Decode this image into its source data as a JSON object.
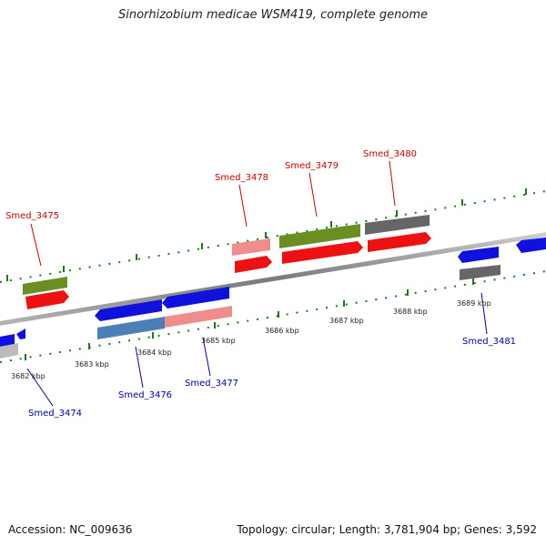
{
  "title": "Sinorhizobium medicae WSM419, complete genome",
  "footer": {
    "accession": "Accession: NC_009636",
    "summary": "Topology: circular; Length: 3,781,904 bp; Genes: 3,592"
  },
  "ruler": [
    "3682 kbp",
    "3683 kbp",
    "3684 kbp",
    "3685 kbp",
    "3686 kbp",
    "3687 kbp",
    "3688 kbp",
    "3689 kbp"
  ],
  "genes_forward": [
    "Smed_3475",
    "Smed_3478",
    "Smed_3479",
    "Smed_3480"
  ],
  "genes_reverse": [
    "Smed_3474",
    "Smed_3476",
    "Smed_3477",
    "Smed_3481"
  ],
  "colors": {
    "forward_cds": "#ee1111",
    "reverse_cds": "#1111dd",
    "olive": "#6b8e23",
    "gray": "#666666",
    "pink": "#ef8c8c",
    "steel": "#4a7fb8",
    "label_forward": "#cc0000",
    "label_reverse": "#0000aa",
    "tick": "#1a7a1a"
  }
}
